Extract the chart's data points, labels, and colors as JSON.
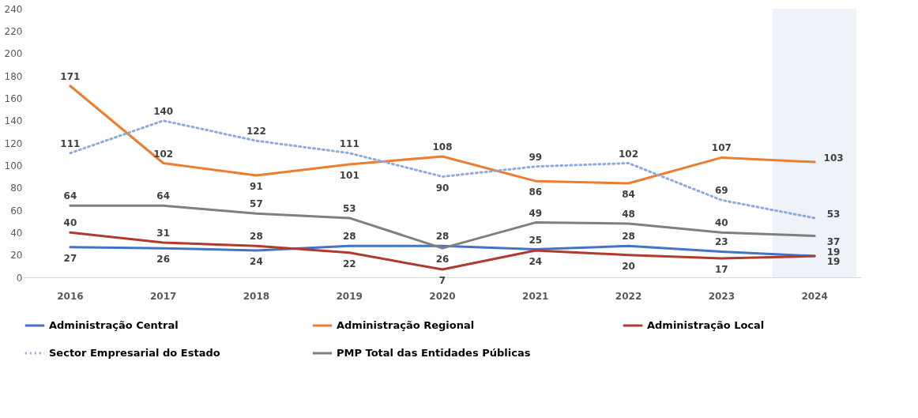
{
  "chart_data": {
    "type": "line",
    "categories": [
      "2016",
      "2017",
      "2018",
      "2019",
      "2020",
      "2021",
      "2022",
      "2023",
      "2024"
    ],
    "series": [
      {
        "name": "Administração Central",
        "color": "#4472c4",
        "line_style": "solid",
        "values": [
          27,
          26,
          24,
          28,
          28,
          25,
          28,
          23,
          19
        ]
      },
      {
        "name": "Administração Regional",
        "color": "#ed7d31",
        "line_style": "solid",
        "values": [
          171,
          102,
          91,
          101,
          108,
          86,
          84,
          107,
          103
        ]
      },
      {
        "name": "Administração Local",
        "color": "#b03a2e",
        "line_style": "solid",
        "values": [
          40,
          31,
          28,
          22,
          7,
          24,
          20,
          17,
          19
        ]
      },
      {
        "name": "Sector Empresarial do Estado",
        "color": "#8faadc",
        "line_style": "dotted",
        "values": [
          111,
          140,
          122,
          111,
          90,
          99,
          102,
          69,
          53
        ]
      },
      {
        "name": "PMP Total das Entidades Públicas",
        "color": "#7f7f7f",
        "line_style": "solid",
        "values": [
          64,
          64,
          57,
          53,
          26,
          49,
          48,
          40,
          37
        ]
      }
    ],
    "ylim": [
      0,
      240
    ],
    "yticks": [
      0,
      20,
      40,
      60,
      80,
      100,
      120,
      140,
      160,
      180,
      200,
      220,
      240
    ],
    "bands": [
      {
        "axis": "x",
        "from": "2024",
        "to": "2024",
        "color": "#eef2f9"
      }
    ],
    "data_labels": true,
    "grid": false,
    "legend": "bottom",
    "marker": "none"
  }
}
